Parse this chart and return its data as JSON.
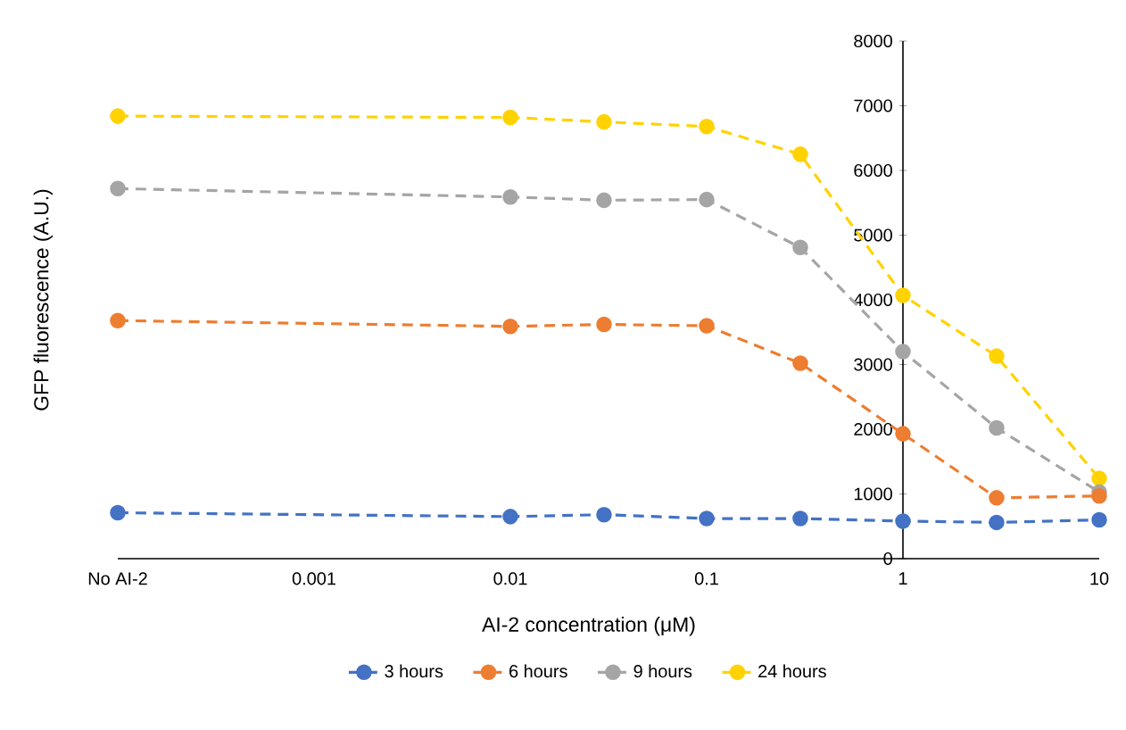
{
  "chart_data": {
    "type": "line",
    "xlabel": "AI-2 concentration (μM)",
    "ylabel": "GFP fluorescence (A.U.)",
    "x": [
      0.0001,
      0.01,
      0.03,
      0.1,
      0.3,
      1,
      3,
      10
    ],
    "log": "x",
    "xlim": [
      0.0001,
      10
    ],
    "xticks": [
      {
        "value": 0.0001,
        "label": "No AI-2"
      },
      0.001,
      0.01,
      0.1,
      1,
      10
    ],
    "ylim": [
      0,
      8000
    ],
    "yticks": [
      0,
      1000,
      2000,
      3000,
      4000,
      5000,
      6000,
      7000,
      8000
    ],
    "grid": false,
    "legend": "bottom",
    "marker": "circle",
    "line_style": "dashed",
    "series": [
      {
        "name": "3 hours",
        "color": "#4472c4",
        "values": [
          710,
          650,
          680,
          620,
          620,
          580,
          560,
          600
        ]
      },
      {
        "name": "6 hours",
        "color": "#ed7d31",
        "values": [
          3680,
          3590,
          3620,
          3600,
          3020,
          1930,
          940,
          970
        ]
      },
      {
        "name": "9 hours",
        "color": "#a5a5a5",
        "values": [
          5720,
          5590,
          5540,
          5550,
          4810,
          3200,
          2020,
          1030
        ]
      },
      {
        "name": "24 hours",
        "color": "#ffd200",
        "values": [
          6840,
          6820,
          6750,
          6680,
          6250,
          4070,
          3130,
          1240
        ]
      }
    ]
  }
}
